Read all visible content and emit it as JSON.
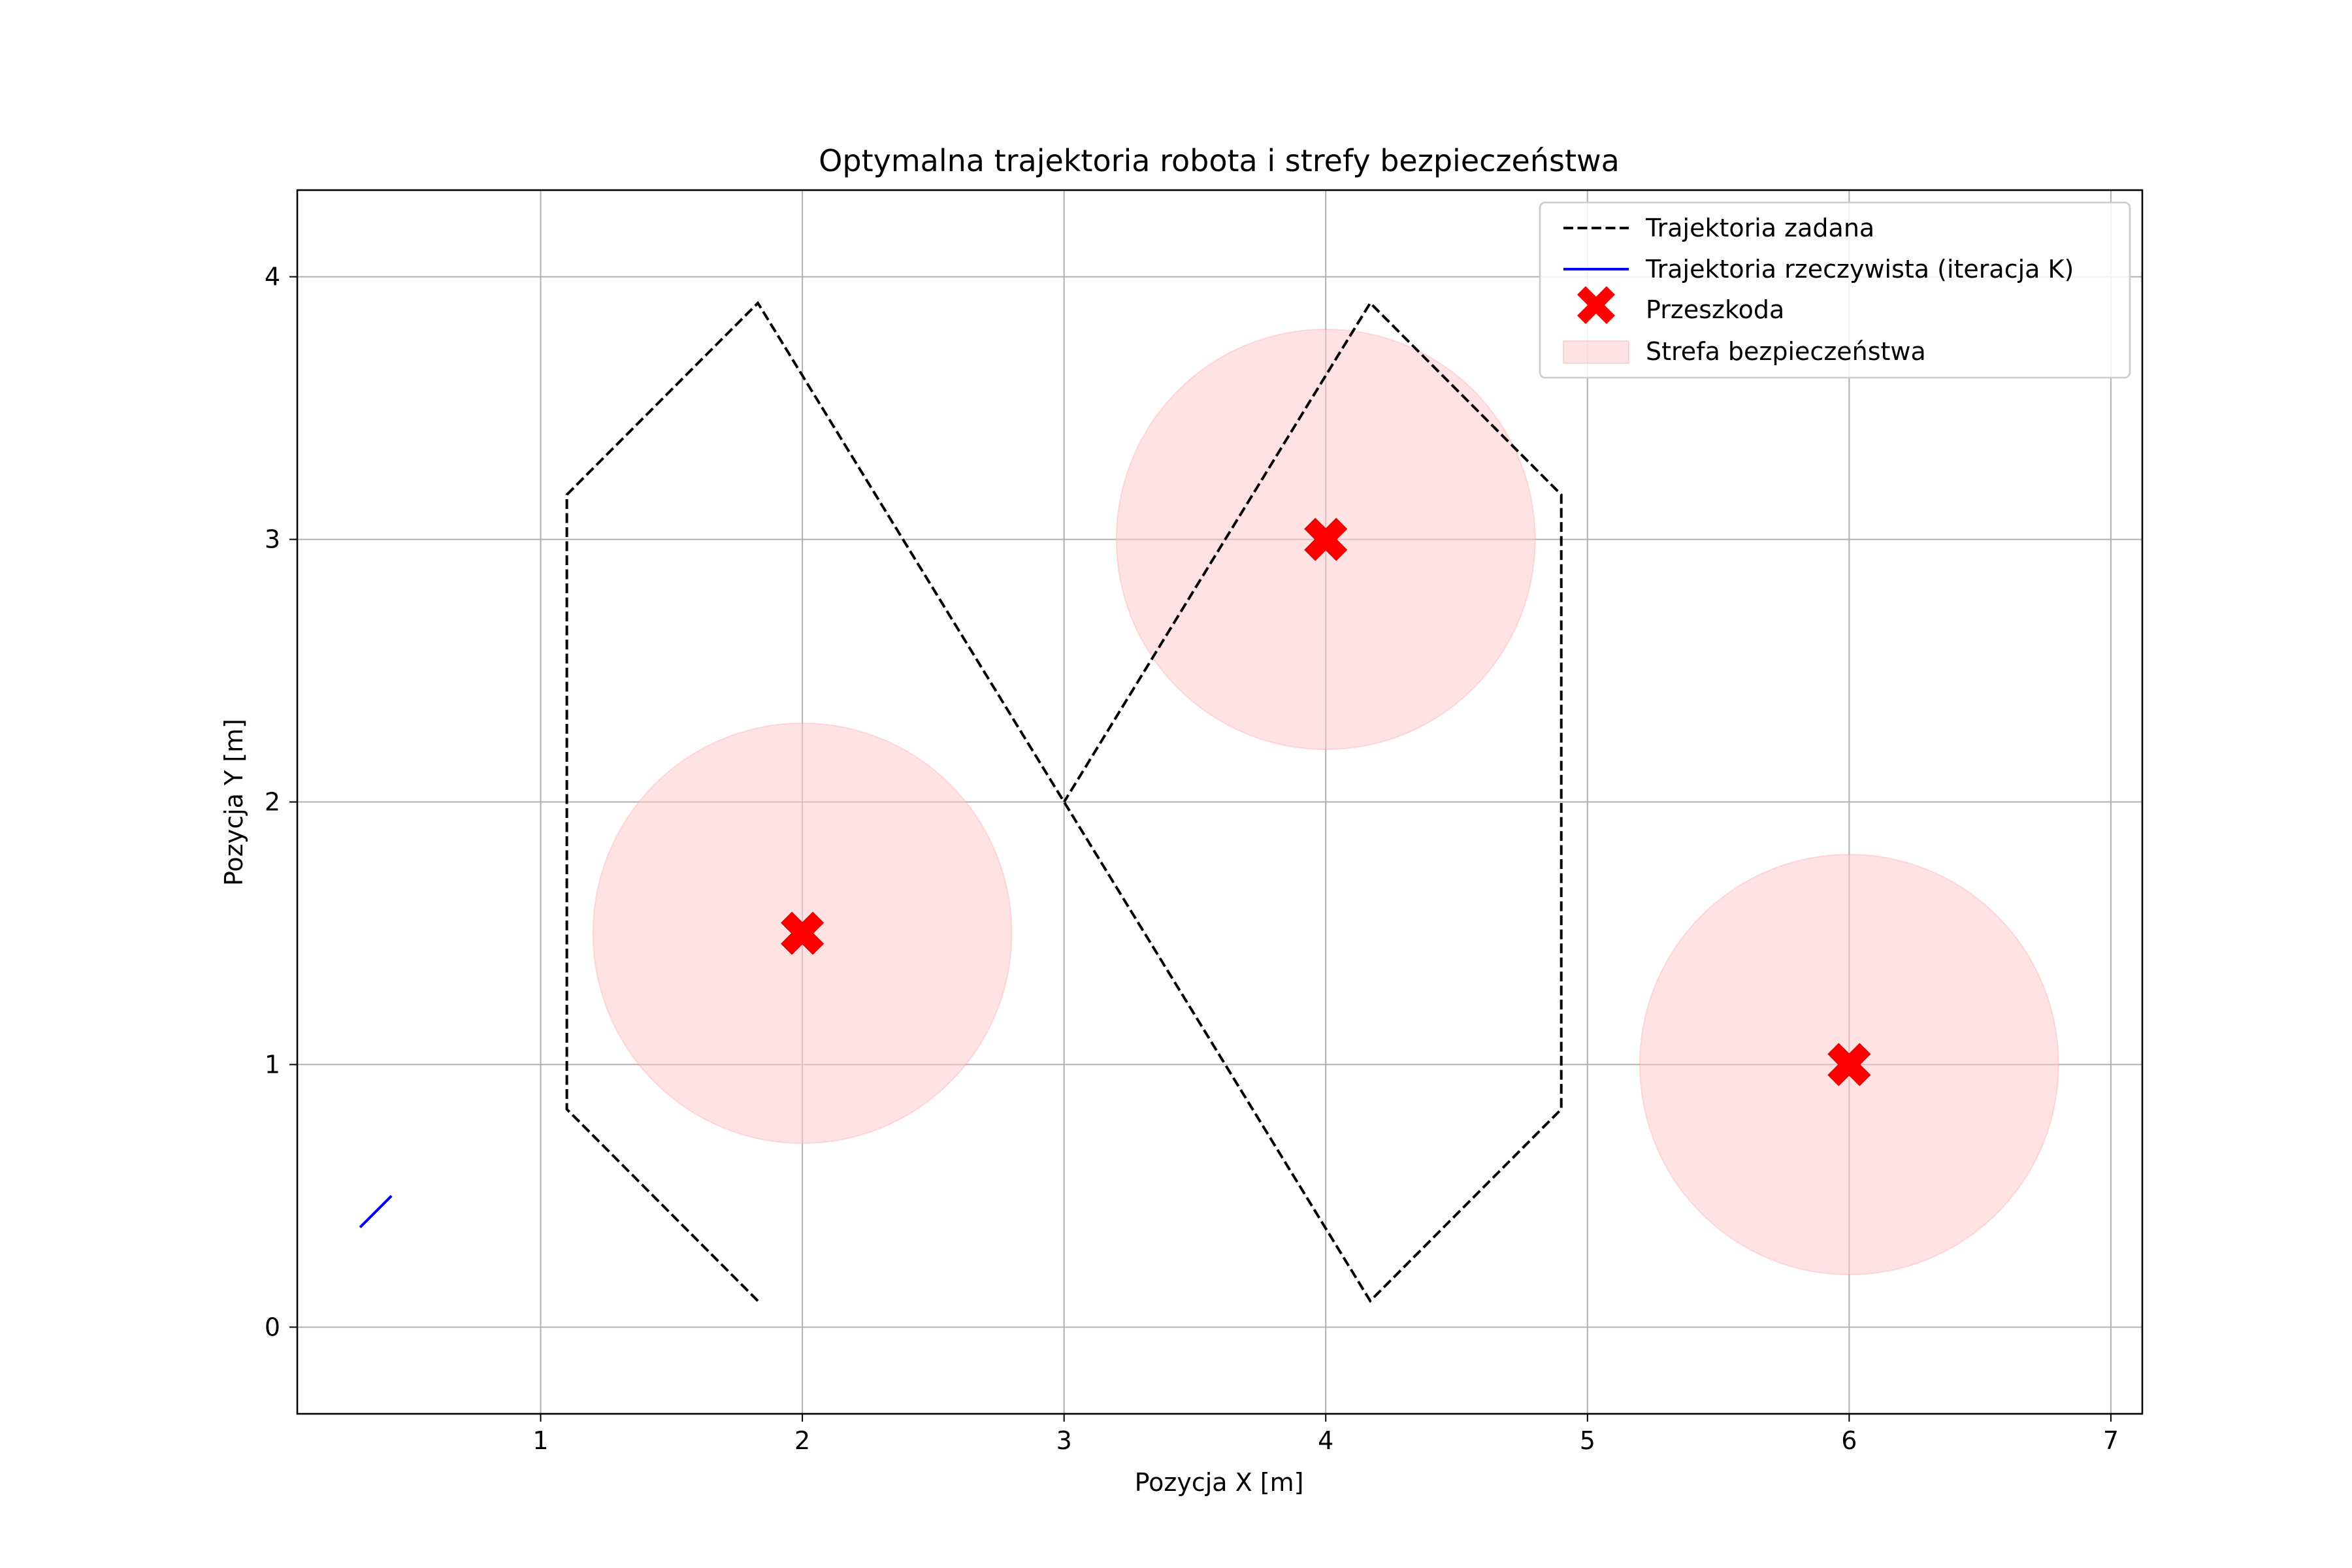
{
  "chart_data": {
    "type": "line",
    "title": "Optymalna trajektoria robota i strefy bezpieczeństwa",
    "xlabel": "Pozycja X [m]",
    "ylabel": "Pozycja Y [m]",
    "xlim": [
      0.07,
      7.12
    ],
    "ylim": [
      -0.33,
      4.33
    ],
    "xticks": [
      "1",
      "2",
      "3",
      "4",
      "5",
      "6",
      "7"
    ],
    "yticks": [
      "0",
      "1",
      "2",
      "3",
      "4"
    ],
    "grid": true,
    "legend_position": "upper right",
    "series": [
      {
        "name": "Trajektoria zadana",
        "style": "dashed",
        "color": "#000000",
        "points": [
          [
            1.83,
            0.1
          ],
          [
            1.1,
            0.83
          ],
          [
            1.1,
            3.17
          ],
          [
            1.83,
            3.9
          ],
          [
            3.0,
            2.0
          ],
          [
            4.17,
            0.1
          ],
          [
            4.9,
            0.83
          ],
          [
            4.9,
            3.17
          ],
          [
            4.17,
            3.9
          ],
          [
            3.0,
            2.0
          ]
        ]
      },
      {
        "name": "Trajektoria rzeczywista (iteracja K)",
        "style": "solid",
        "color": "#0000ff",
        "points": [
          [
            0.31,
            0.38
          ],
          [
            0.43,
            0.5
          ]
        ]
      },
      {
        "name": "Przeszkoda",
        "style": "marker-x",
        "color": "#ff0000",
        "points": [
          [
            2,
            1.5
          ],
          [
            4,
            3
          ],
          [
            6,
            1
          ]
        ]
      },
      {
        "name": "Strefa bezpieczeństwa",
        "style": "circle-fill",
        "color": "#ffcccc",
        "radius": 0.8,
        "centers": [
          [
            2,
            1.5
          ],
          [
            4,
            3
          ],
          [
            6,
            1
          ]
        ]
      }
    ]
  }
}
